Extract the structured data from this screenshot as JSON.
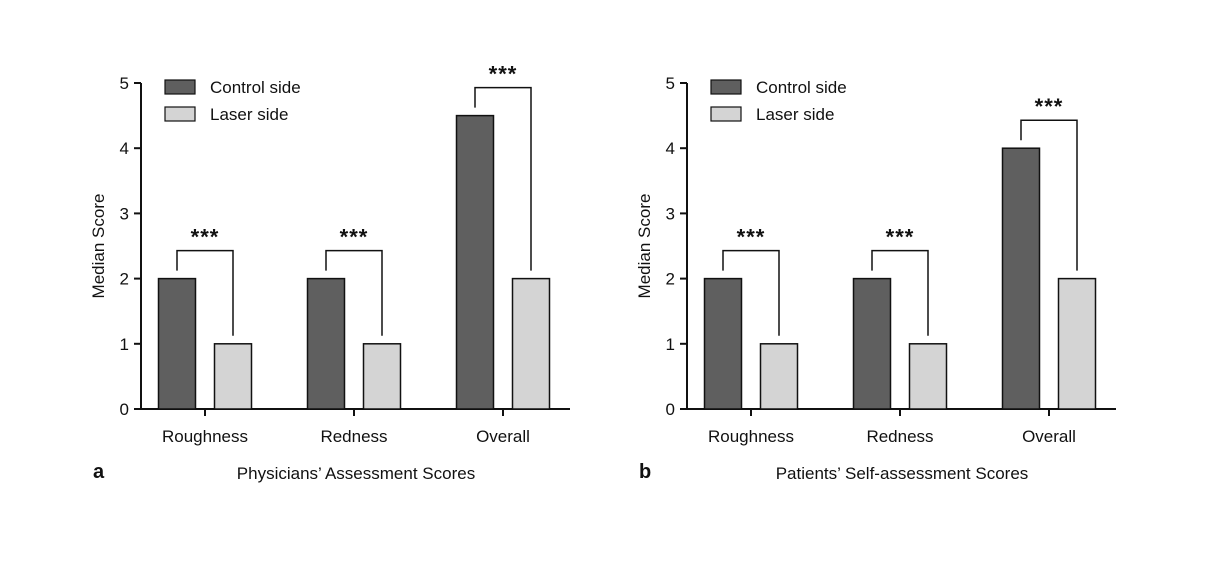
{
  "chart_data": [
    {
      "type": "bar",
      "panel_label": "a",
      "title": "",
      "xlabel": "Physicians’ Assessment Scores",
      "ylabel": "Median Score",
      "ylim": [
        0,
        5
      ],
      "yticks": [
        "0",
        "1",
        "2",
        "3",
        "4",
        "5"
      ],
      "categories": [
        "Roughness",
        "Redness",
        "Overall"
      ],
      "series": [
        {
          "name": "Control side",
          "color": "#5f5f5f",
          "values": [
            2,
            2,
            4.5
          ]
        },
        {
          "name": "Laser side",
          "color": "#d4d4d4",
          "values": [
            1,
            1,
            2
          ]
        }
      ],
      "significance": [
        "***",
        "***",
        "***"
      ],
      "legend": "top-left",
      "grid": false
    },
    {
      "type": "bar",
      "panel_label": "b",
      "title": "",
      "xlabel": "Patients’ Self-assessment Scores",
      "ylabel": "Median Score",
      "ylim": [
        0,
        5
      ],
      "yticks": [
        "0",
        "1",
        "2",
        "3",
        "4",
        "5"
      ],
      "categories": [
        "Roughness",
        "Redness",
        "Overall"
      ],
      "series": [
        {
          "name": "Control side",
          "color": "#5f5f5f",
          "values": [
            2,
            2,
            4
          ]
        },
        {
          "name": "Laser side",
          "color": "#d4d4d4",
          "values": [
            1,
            1,
            2
          ]
        }
      ],
      "significance": [
        "***",
        "***",
        "***"
      ],
      "legend": "top-left",
      "grid": false
    }
  ]
}
